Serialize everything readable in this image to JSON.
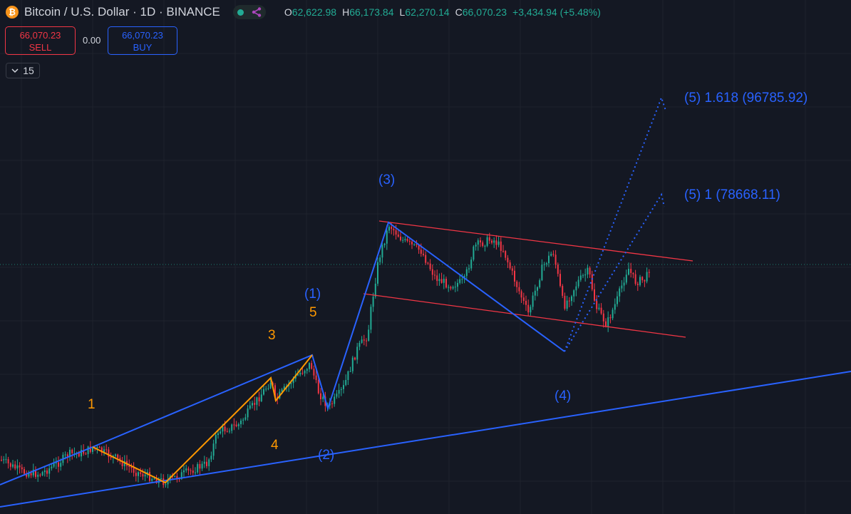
{
  "header": {
    "coin_symbol": "₿",
    "title": "Bitcoin / U.S. Dollar · 1D · BINANCE",
    "ohlc": [
      {
        "key": "O",
        "value": "62,622.98"
      },
      {
        "key": "H",
        "value": "66,173.84"
      },
      {
        "key": "L",
        "value": "62,270.14"
      },
      {
        "key": "C",
        "value": "66,070.23"
      }
    ],
    "change": "+3,434.94 (+5.48%)"
  },
  "trade": {
    "sell_price": "66,070.23",
    "sell_label": "SELL",
    "spread": "0.00",
    "buy_price": "66,070.23",
    "buy_label": "BUY"
  },
  "interval": {
    "icon": "chevron-down-icon",
    "value": "15"
  },
  "colors": {
    "background": "#141823",
    "grid": "#1e222d",
    "up": "#22ab94",
    "down": "#f23645",
    "elliott_major": "#2962ff",
    "elliott_minor": "#ff9800",
    "channel": "#f23645"
  },
  "labels": {
    "wave1": "1",
    "wave3": "3",
    "wave4": "4",
    "wave5": "5",
    "w1": "(1)",
    "w2": "(2)",
    "w3": "(3)",
    "w4": "(4)",
    "t1": "(5) 1 (78668.11)",
    "t1618": "(5) 1.618 (96785.92)"
  },
  "chart_data": {
    "type": "candlestick",
    "symbol": "Bitcoin / U.S. Dollar",
    "interval": "1D",
    "exchange": "BINANCE",
    "last_close": 66070.23,
    "annotations": [
      {
        "label": "(5) 1.618",
        "value": 96785.92
      },
      {
        "label": "(5) 1",
        "value": 78668.11
      }
    ],
    "grid": true
  }
}
